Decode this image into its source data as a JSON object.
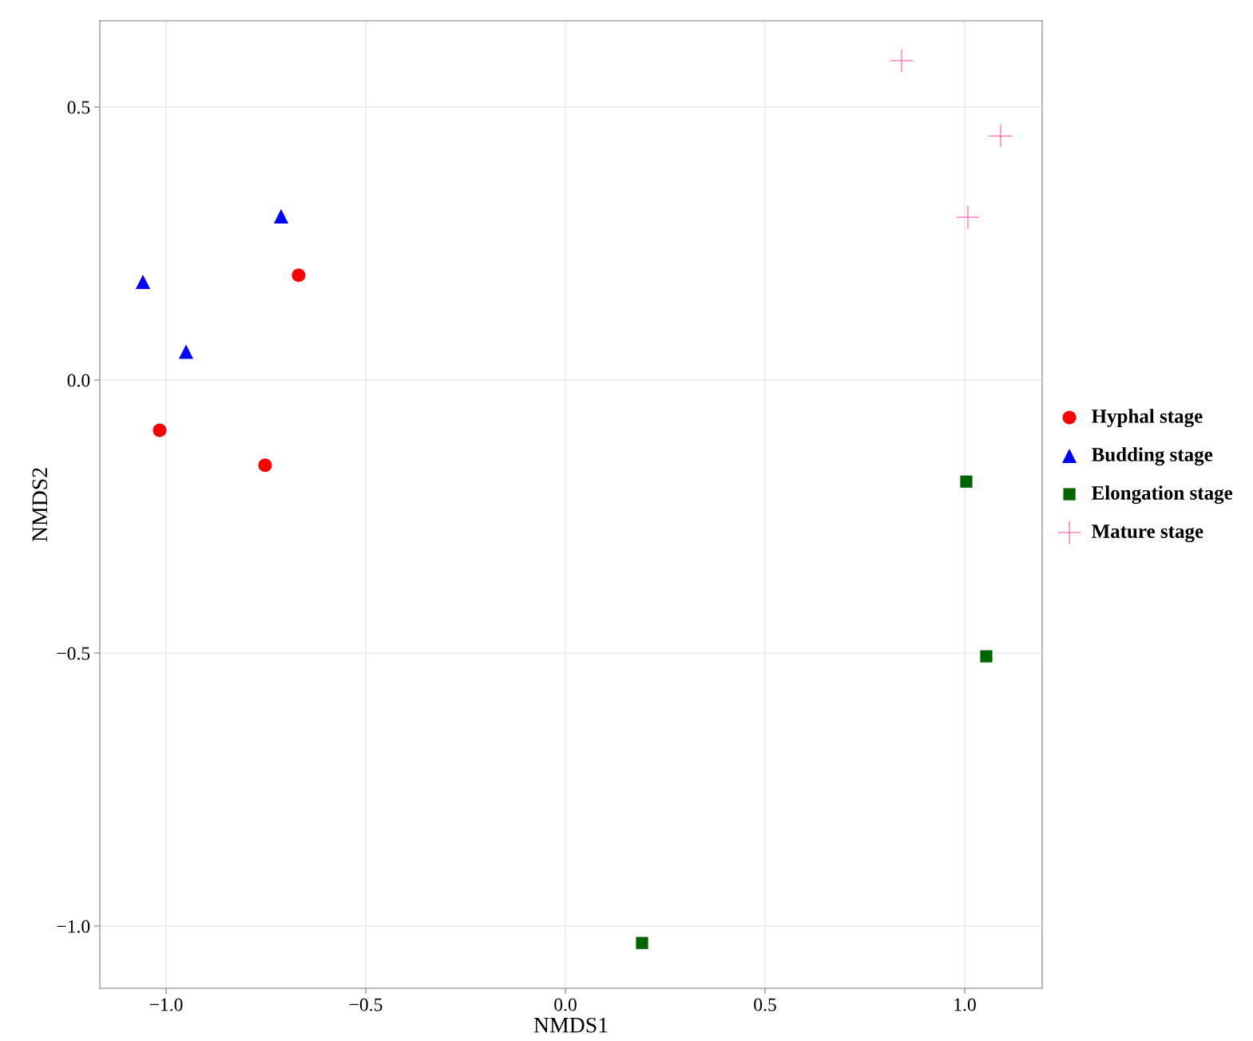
{
  "chart_data": {
    "type": "scatter",
    "xlabel": "NMDS1",
    "ylabel": "NMDS2",
    "xlim": [
      -1.166,
      1.194
    ],
    "ylim": [
      -1.114,
      0.658
    ],
    "xticks": [
      {
        "value": -1.0,
        "label": "−1.0"
      },
      {
        "value": -0.5,
        "label": "−0.5"
      },
      {
        "value": 0.0,
        "label": "0.0"
      },
      {
        "value": 0.5,
        "label": "0.5"
      },
      {
        "value": 1.0,
        "label": "1.0"
      }
    ],
    "yticks": [
      {
        "value": -1.0,
        "label": "−1.0"
      },
      {
        "value": -0.5,
        "label": "−0.5"
      },
      {
        "value": 0.0,
        "label": "0.0"
      },
      {
        "value": 0.5,
        "label": "0.5"
      }
    ],
    "grid": true,
    "legend": "right",
    "series": [
      {
        "name": "Hyphal stage",
        "color": "#ff0000",
        "marker": "circle",
        "x": [
          -1.016,
          -0.752,
          -0.668
        ],
        "values": [
          -0.092,
          -0.156,
          0.192
        ]
      },
      {
        "name": "Budding stage",
        "color": "#0000ff",
        "marker": "triangle",
        "x": [
          -1.058,
          -0.95,
          -0.712
        ],
        "values": [
          0.18,
          0.052,
          0.3
        ]
      },
      {
        "name": "Elongation stage",
        "color": "#006400",
        "marker": "square",
        "x": [
          1.004,
          1.054,
          0.192
        ],
        "values": [
          -0.186,
          -0.506,
          -1.031
        ]
      },
      {
        "name": "Mature stage",
        "color": "#ff69b4",
        "marker": "cross",
        "x": [
          0.842,
          1.09,
          1.008
        ],
        "values": [
          0.585,
          0.447,
          0.298
        ]
      }
    ]
  }
}
